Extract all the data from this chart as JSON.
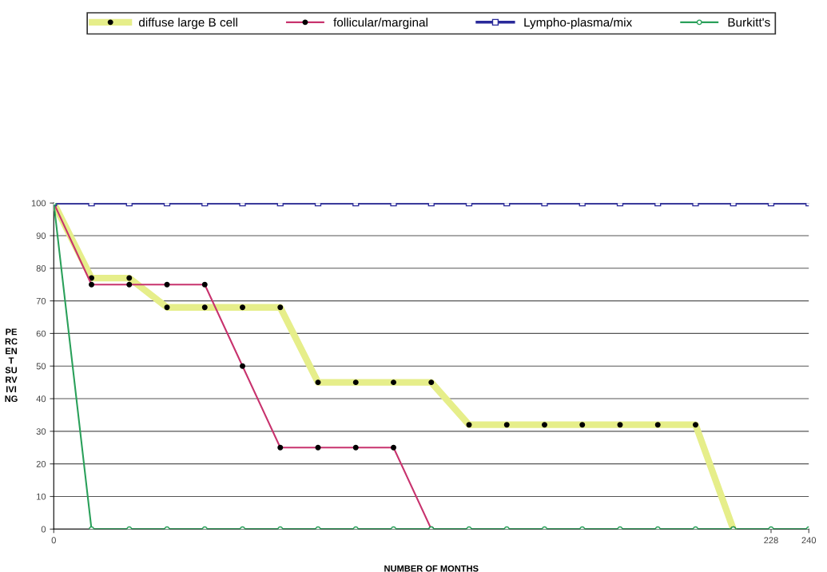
{
  "chart_data": {
    "type": "line",
    "xlabel": "NUMBER OF MONTHS",
    "ylabel": "PE\nRC\nEN\nT\nSU\nRV\nIVI\nNG",
    "x": [
      0,
      12,
      24,
      36,
      48,
      60,
      72,
      84,
      96,
      108,
      120,
      132,
      144,
      156,
      168,
      180,
      192,
      204,
      216,
      228,
      240
    ],
    "series": [
      {
        "name": "diffuse large B cell",
        "color": "#e6ee8a",
        "marker": "circle",
        "values": [
          100,
          77,
          77,
          68,
          68,
          68,
          68,
          45,
          45,
          45,
          45,
          32,
          32,
          32,
          32,
          32,
          32,
          32,
          0,
          null,
          null
        ]
      },
      {
        "name": "follicular/marginal",
        "color": "#c8336e",
        "marker": "circle",
        "values": [
          100,
          75,
          75,
          75,
          75,
          50,
          25,
          25,
          25,
          25,
          0,
          null,
          null,
          null,
          null,
          null,
          null,
          null,
          null,
          null,
          null
        ]
      },
      {
        "name": "Lympho-plasma/mix",
        "color": "#2a2a9a",
        "marker": "square",
        "values": [
          100,
          100,
          100,
          100,
          100,
          100,
          100,
          100,
          100,
          100,
          100,
          100,
          100,
          100,
          100,
          100,
          100,
          100,
          100,
          100,
          100
        ]
      },
      {
        "name": "Burkitt's",
        "color": "#2aa05a",
        "marker": "circle",
        "values": [
          100,
          0,
          0,
          0,
          0,
          0,
          0,
          0,
          0,
          0,
          0,
          0,
          0,
          0,
          0,
          0,
          0,
          0,
          0,
          0,
          0
        ]
      }
    ],
    "xlim": [
      0,
      240
    ],
    "xticks": [
      0,
      228,
      240
    ],
    "ylim": [
      0,
      100
    ],
    "yticks": [
      0,
      10,
      20,
      30,
      40,
      50,
      60,
      70,
      80,
      90,
      100
    ],
    "grid": "y",
    "legend": "top",
    "line_style": "solid"
  }
}
